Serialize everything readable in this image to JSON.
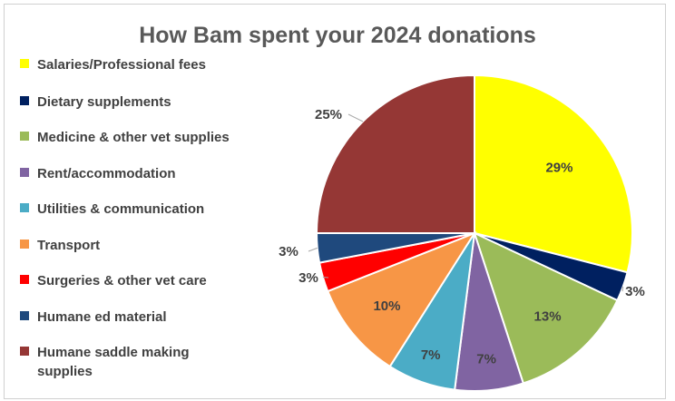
{
  "chart_data": {
    "type": "pie",
    "title": "How Bam spent your 2024 donations",
    "legend_position": "left",
    "slices": [
      {
        "label": "Salaries/Professional fees",
        "value": 29,
        "value_label": "29%",
        "color": "#ffff00"
      },
      {
        "label": "Dietary supplements",
        "value": 3,
        "value_label": "3%",
        "color": "#002060"
      },
      {
        "label": "Medicine & other vet supplies",
        "value": 13,
        "value_label": "13%",
        "color": "#9bbb59"
      },
      {
        "label": "Rent/accommodation",
        "value": 7,
        "value_label": "7%",
        "color": "#8064a2"
      },
      {
        "label": "Utilities & communication",
        "value": 7,
        "value_label": "7%",
        "color": "#4bacc6"
      },
      {
        "label": "Transport",
        "value": 10,
        "value_label": "10%",
        "color": "#f79646"
      },
      {
        "label": "Surgeries & other vet care",
        "value": 3,
        "value_label": "3%",
        "color": "#ff0000"
      },
      {
        "label": "Humane ed material",
        "value": 3,
        "value_label": "3%",
        "color": "#1f497d"
      },
      {
        "label": "Humane saddle making supplies",
        "value": 25,
        "value_label": "25%",
        "color": "#953735"
      }
    ]
  }
}
